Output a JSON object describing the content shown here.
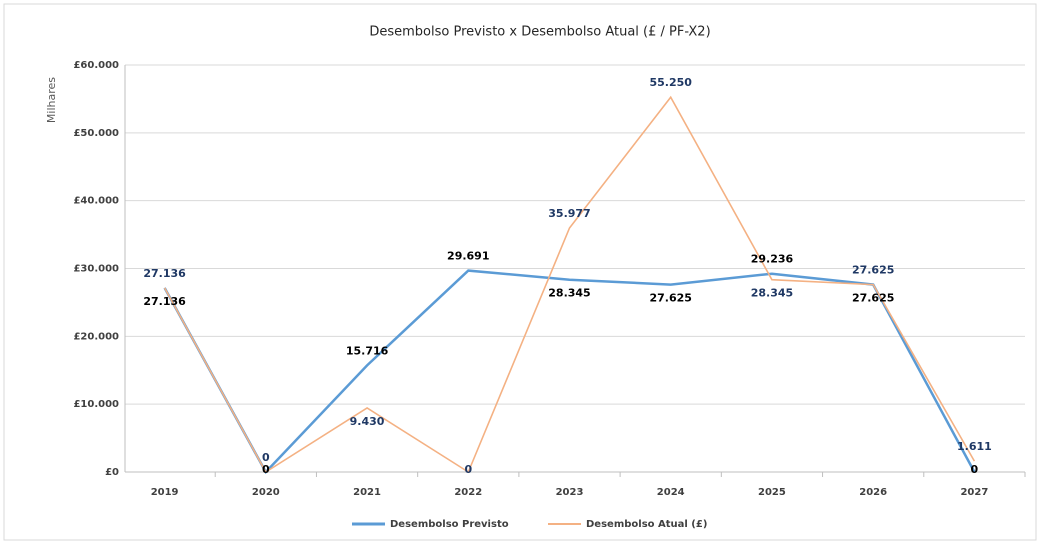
{
  "chart_data": {
    "type": "line",
    "title": "Desembolso Previsto x Desembolso Atual (£ / PF-X2)",
    "y_axis_label": "Milhares",
    "categories": [
      "2019",
      "2020",
      "2021",
      "2022",
      "2023",
      "2024",
      "2025",
      "2026",
      "2027"
    ],
    "series": [
      {
        "name": "Desembolso Previsto",
        "color": "#5b9bd5",
        "label_color": "#000000",
        "values": [
          27136,
          0,
          15716,
          29691,
          28345,
          27625,
          29236,
          27625,
          0
        ],
        "value_labels": [
          "27.136",
          "0",
          "15.716",
          "29.691",
          "28.345",
          "27.625",
          "29.236",
          "27.625",
          "0"
        ]
      },
      {
        "name": "Desembolso Atual (£)",
        "color": "#f4b183",
        "label_color": "#1f3864",
        "values": [
          27136,
          0,
          9430,
          0,
          35977,
          55250,
          28345,
          27625,
          1611
        ],
        "value_labels": [
          "27.136",
          "0",
          "9.430",
          "0",
          "35.977",
          "55.250",
          "28.345",
          "27.625",
          "1.611"
        ]
      }
    ],
    "ylim": [
      0,
      60000
    ],
    "yticks": [
      {
        "value": 0,
        "label": "£0"
      },
      {
        "value": 10000,
        "label": "£10.000"
      },
      {
        "value": 20000,
        "label": "£20.000"
      },
      {
        "value": 30000,
        "label": "£30.000"
      },
      {
        "value": 40000,
        "label": "£40.000"
      },
      {
        "value": 50000,
        "label": "£50.000"
      },
      {
        "value": 60000,
        "label": "£60.000"
      }
    ],
    "grid": true,
    "legend": "bottom"
  }
}
